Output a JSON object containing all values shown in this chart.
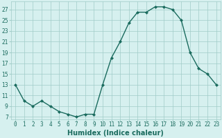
{
  "x": [
    0,
    1,
    2,
    3,
    4,
    5,
    6,
    7,
    8,
    9,
    10,
    11,
    12,
    13,
    14,
    15,
    16,
    17,
    18,
    19,
    20,
    21,
    22,
    23
  ],
  "y": [
    13,
    10,
    9,
    10,
    9,
    8,
    7.5,
    7,
    7.5,
    7.5,
    13,
    18,
    21,
    24.5,
    26.5,
    26.5,
    27.5,
    27.5,
    27,
    25,
    19,
    16,
    15,
    13
  ],
  "line_color": "#1a6b5e",
  "marker": "D",
  "marker_size": 2.0,
  "bg_color": "#d6f0ef",
  "grid_color": "#a0ccc8",
  "xlabel": "Humidex (Indice chaleur)",
  "ylabel": "",
  "xlim": [
    -0.5,
    23.5
  ],
  "ylim": [
    6.5,
    28.5
  ],
  "yticks": [
    7,
    9,
    11,
    13,
    15,
    17,
    19,
    21,
    23,
    25,
    27
  ],
  "xticks": [
    0,
    1,
    2,
    3,
    4,
    5,
    6,
    7,
    8,
    9,
    10,
    11,
    12,
    13,
    14,
    15,
    16,
    17,
    18,
    19,
    20,
    21,
    22,
    23
  ],
  "xtick_labels": [
    "0",
    "1",
    "2",
    "3",
    "4",
    "5",
    "6",
    "7",
    "8",
    "9",
    "10",
    "11",
    "12",
    "13",
    "14",
    "15",
    "16",
    "17",
    "18",
    "19",
    "20",
    "21",
    "22",
    "23"
  ],
  "tick_color": "#1a6b5e",
  "xlabel_fontsize": 7,
  "tick_fontsize": 5.5,
  "linewidth": 1.0
}
